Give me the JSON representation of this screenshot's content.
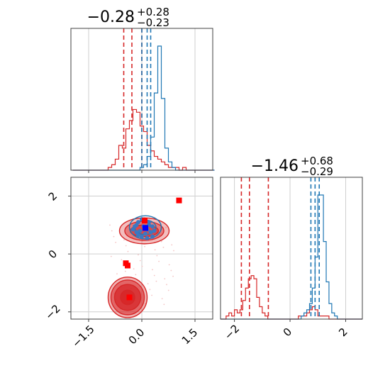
{
  "chart_data": [
    {
      "type": "histogram",
      "panel": "marginal-param-1",
      "title_main": "−0.28",
      "title_sup": "+0.28",
      "title_sub": "−0.23",
      "xlim": [
        -2.0,
        2.0
      ],
      "grid": true,
      "series": [
        {
          "color": "#d62728",
          "bin_start": -1.95,
          "bin_width": 0.1,
          "counts": [
            0,
            0,
            0,
            0,
            0,
            0,
            0,
            0,
            0,
            0,
            1,
            2,
            4,
            9,
            8,
            15,
            18,
            22,
            21,
            16,
            14,
            9,
            7,
            5,
            4,
            3,
            2,
            1,
            1,
            1,
            0,
            1,
            0,
            0,
            0,
            0,
            0,
            0,
            0,
            0
          ],
          "quantile_lines": [
            -0.51,
            -0.28,
            0.0
          ]
        },
        {
          "color": "#1f77b4",
          "bin_start": -1.95,
          "bin_width": 0.1,
          "counts": [
            0,
            0,
            0,
            0,
            0,
            0,
            0,
            0,
            0,
            0,
            0,
            0,
            0,
            0,
            0,
            0,
            0,
            0,
            0,
            1,
            2,
            5,
            12,
            28,
            45,
            26,
            8,
            3,
            1,
            0,
            0,
            0,
            0,
            0,
            0,
            0,
            0,
            0,
            0,
            0
          ],
          "quantile_lines": [
            0.0,
            0.15,
            0.25
          ]
        }
      ]
    },
    {
      "type": "histogram",
      "panel": "marginal-param-2",
      "title_main": "−1.46",
      "title_sup": "+0.68",
      "title_sub": "−0.29",
      "xlim": [
        -2.5,
        2.6
      ],
      "xticks": [
        -2,
        0,
        2
      ],
      "xtick_labels": [
        "−2",
        "0",
        "2"
      ],
      "grid": true,
      "series": [
        {
          "color": "#d62728",
          "bin_start": -2.5,
          "bin_width": 0.1,
          "counts": [
            0,
            0,
            1,
            2,
            1,
            3,
            2,
            3,
            6,
            10,
            13,
            14,
            13,
            7,
            4,
            2,
            1,
            0,
            0,
            0,
            0,
            0,
            0,
            0,
            0,
            0,
            0,
            0,
            1,
            1,
            1,
            2,
            3,
            4,
            3,
            1,
            1,
            1,
            1,
            0,
            0,
            0,
            0,
            0,
            0,
            0,
            0,
            0,
            0,
            0,
            0
          ],
          "quantile_lines": [
            -1.75,
            -1.46,
            -0.78
          ]
        },
        {
          "color": "#1f77b4",
          "bin_start": -2.5,
          "bin_width": 0.1,
          "counts": [
            0,
            0,
            0,
            0,
            0,
            0,
            0,
            0,
            0,
            0,
            0,
            0,
            0,
            0,
            0,
            0,
            0,
            0,
            0,
            0,
            0,
            0,
            0,
            0,
            0,
            0,
            0,
            0,
            0,
            1,
            2,
            3,
            5,
            10,
            20,
            40,
            40,
            25,
            12,
            5,
            2,
            1,
            0,
            0,
            0,
            0,
            0,
            0,
            0,
            0,
            0
          ],
          "quantile_lines": [
            0.75,
            0.9,
            1.05
          ]
        }
      ]
    },
    {
      "type": "scatter",
      "panel": "joint-2d",
      "xlim": [
        -2.0,
        2.0
      ],
      "ylim": [
        -2.25,
        2.65
      ],
      "xticks": [
        -1.5,
        0.0,
        1.5
      ],
      "xtick_labels": [
        "−1.5",
        "0.0",
        "1.5"
      ],
      "yticks": [
        -2,
        0,
        2
      ],
      "ytick_labels": [
        "−2",
        "0",
        "2"
      ],
      "grid": true,
      "contours": [
        {
          "color": "#d62728",
          "cx": -0.4,
          "cy": -1.5,
          "rx": [
            0.55,
            0.47,
            0.37,
            0.2
          ],
          "ry": [
            0.7,
            0.6,
            0.45,
            0.25
          ],
          "fill_alpha": [
            0.35,
            0.55,
            0.75,
            0.9
          ]
        },
        {
          "color": "#d62728",
          "cx": 0.07,
          "cy": 0.8,
          "rx": [
            0.7,
            0.55,
            0.4
          ],
          "ry": [
            0.45,
            0.33,
            0.2
          ],
          "fill_alpha": [
            0.3,
            0.45,
            0.6
          ]
        },
        {
          "color": "#1f77b4",
          "cx": 0.1,
          "cy": 0.92,
          "rx": [
            0.45,
            0.3
          ],
          "ry": [
            0.4,
            0.25
          ],
          "fill_alpha": [
            0.0,
            0.0
          ]
        }
      ],
      "blue_samples": [
        [
          -0.2,
          0.95
        ],
        [
          -0.15,
          0.75
        ],
        [
          -0.1,
          1.1
        ],
        [
          0.0,
          1.2
        ],
        [
          0.1,
          1.15
        ],
        [
          0.2,
          1.1
        ],
        [
          0.3,
          0.95
        ],
        [
          0.35,
          0.8
        ],
        [
          0.3,
          0.6
        ],
        [
          0.15,
          0.55
        ],
        [
          0.0,
          0.6
        ],
        [
          -0.1,
          0.65
        ],
        [
          -0.25,
          0.85
        ],
        [
          0.05,
          0.95
        ],
        [
          0.15,
          0.85
        ],
        [
          0.25,
          0.75
        ],
        [
          -0.05,
          0.8
        ],
        [
          0.1,
          0.7
        ],
        [
          0.2,
          1.0
        ],
        [
          -0.15,
          1.0
        ]
      ],
      "red_markers": [
        [
          1.05,
          1.85
        ],
        [
          0.08,
          1.15
        ],
        [
          -0.45,
          -0.32
        ],
        [
          -0.4,
          -0.4
        ],
        [
          -0.35,
          -1.5
        ]
      ],
      "blue_markers": [
        [
          0.1,
          0.9
        ]
      ]
    }
  ]
}
